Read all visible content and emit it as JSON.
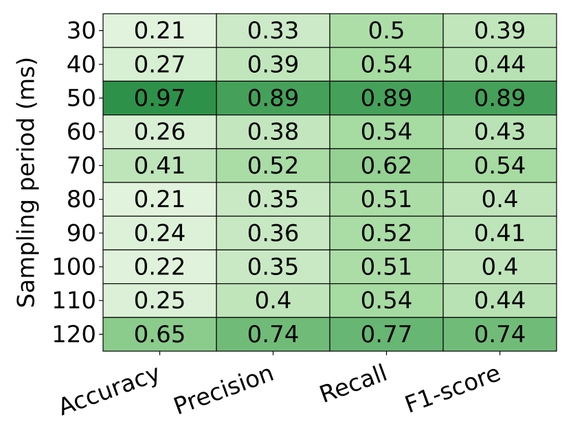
{
  "chart_data": {
    "type": "heatmap",
    "ylabel": "Sampling period (ms)",
    "x_categories": [
      "Accuracy",
      "Precision",
      "Recall",
      "F1-score"
    ],
    "y_categories": [
      "30",
      "40",
      "50",
      "60",
      "70",
      "80",
      "90",
      "100",
      "110",
      "120"
    ],
    "values": [
      [
        0.21,
        0.33,
        0.5,
        0.39
      ],
      [
        0.27,
        0.39,
        0.54,
        0.44
      ],
      [
        0.97,
        0.89,
        0.89,
        0.89
      ],
      [
        0.26,
        0.38,
        0.54,
        0.43
      ],
      [
        0.41,
        0.52,
        0.62,
        0.54
      ],
      [
        0.21,
        0.35,
        0.51,
        0.4
      ],
      [
        0.24,
        0.36,
        0.52,
        0.41
      ],
      [
        0.22,
        0.35,
        0.51,
        0.4
      ],
      [
        0.25,
        0.4,
        0.54,
        0.44
      ],
      [
        0.65,
        0.74,
        0.77,
        0.74
      ]
    ],
    "colors": [
      "#e2f3dd",
      "#9dd798",
      "#2e9149"
    ]
  }
}
